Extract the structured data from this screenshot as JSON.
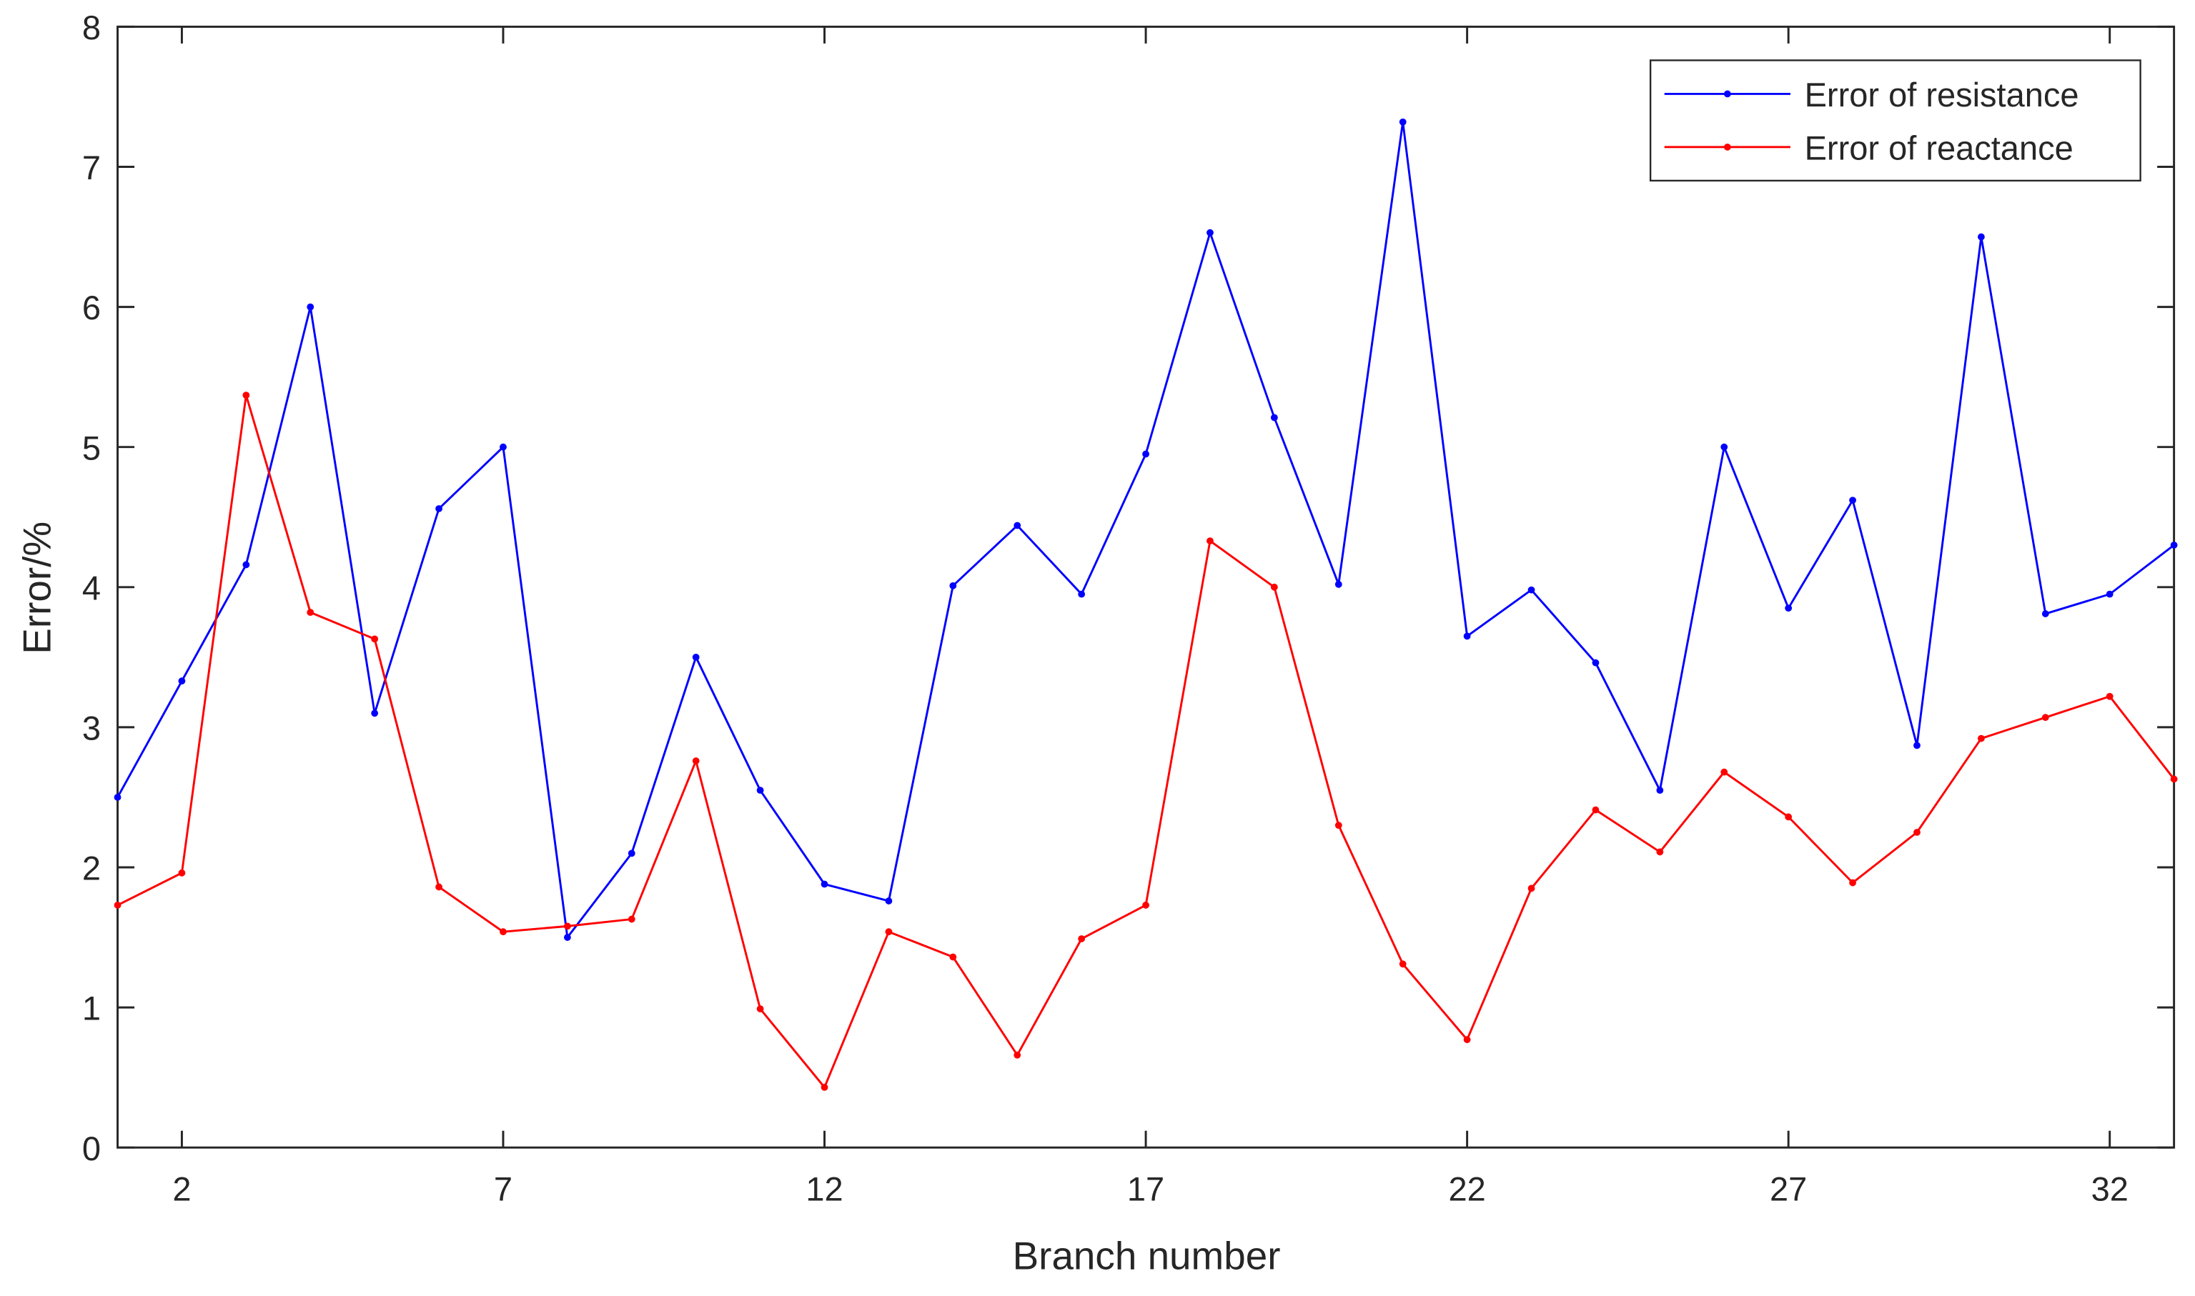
{
  "chart_data": {
    "type": "line",
    "x_label": "Branch number",
    "y_label": "Error/%",
    "x": [
      1,
      2,
      3,
      4,
      5,
      6,
      7,
      8,
      9,
      10,
      11,
      12,
      13,
      14,
      15,
      16,
      17,
      18,
      19,
      20,
      21,
      22,
      23,
      24,
      25,
      26,
      27,
      28,
      29,
      30,
      31,
      32,
      33
    ],
    "series": [
      {
        "name": "Error of resistance",
        "color": "#0000ff",
        "values": [
          2.5,
          3.33,
          4.16,
          6.0,
          3.1,
          4.56,
          5.0,
          1.5,
          2.1,
          3.5,
          2.55,
          1.88,
          1.76,
          4.01,
          4.44,
          3.95,
          4.95,
          6.53,
          5.21,
          4.02,
          7.32,
          3.65,
          3.98,
          3.46,
          2.55,
          5.0,
          3.85,
          4.62,
          2.87,
          6.5,
          3.81,
          3.95,
          4.3
        ]
      },
      {
        "name": "Error of reactance",
        "color": "#ff0000",
        "values": [
          1.73,
          1.96,
          5.37,
          3.82,
          3.63,
          1.86,
          1.54,
          1.58,
          1.63,
          2.76,
          0.99,
          0.43,
          1.54,
          1.36,
          0.66,
          1.49,
          1.73,
          4.33,
          4.0,
          2.3,
          1.31,
          0.77,
          1.85,
          2.41,
          2.11,
          2.68,
          2.36,
          1.89,
          2.25,
          2.92,
          3.07,
          3.22,
          2.63
        ]
      }
    ],
    "xlim": [
      1,
      33
    ],
    "xticks": [
      2,
      7,
      12,
      17,
      22,
      27,
      32
    ],
    "ylim": [
      0,
      8
    ],
    "yticks": [
      0,
      1,
      2,
      3,
      4,
      5,
      6,
      7,
      8
    ],
    "legend": "northeast"
  }
}
